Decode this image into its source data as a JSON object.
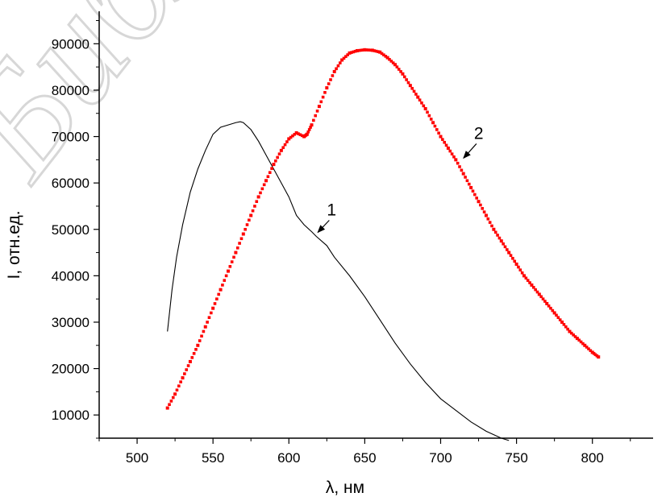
{
  "watermark": {
    "text": "Библио"
  },
  "chart_data": {
    "type": "line",
    "xlabel": "λ, нм",
    "ylabel": "I, отн.ед.",
    "xlim": [
      475,
      840
    ],
    "ylim": [
      5000,
      97000
    ],
    "x_ticks": [
      500,
      550,
      600,
      650,
      700,
      750,
      800
    ],
    "y_ticks": [
      10000,
      20000,
      30000,
      40000,
      50000,
      60000,
      70000,
      80000,
      90000
    ],
    "grid": false,
    "series": [
      {
        "name": "1",
        "style": "line",
        "color": "#000000",
        "x": [
          520,
          523,
          526,
          530,
          535,
          540,
          545,
          550,
          555,
          560,
          565,
          568,
          570,
          575,
          580,
          585,
          590,
          595,
          600,
          605,
          610,
          615,
          618,
          625,
          630,
          640,
          650,
          660,
          670,
          680,
          690,
          700,
          710,
          720,
          730,
          740,
          745
        ],
        "y": [
          28000,
          37000,
          44000,
          51000,
          58000,
          63000,
          67000,
          70500,
          72000,
          72500,
          73000,
          73200,
          73000,
          71500,
          69000,
          66000,
          63000,
          60000,
          57000,
          53000,
          51000,
          49500,
          48500,
          46500,
          44000,
          40000,
          35500,
          30500,
          25500,
          21000,
          17000,
          13500,
          11000,
          8500,
          6500,
          5000,
          4500
        ]
      },
      {
        "name": "2",
        "style": "points",
        "color": "#ff0000",
        "x": [
          520,
          525,
          530,
          535,
          540,
          545,
          550,
          555,
          560,
          565,
          570,
          575,
          580,
          585,
          590,
          595,
          600,
          605,
          610,
          612,
          615,
          620,
          625,
          630,
          635,
          640,
          645,
          650,
          655,
          660,
          665,
          670,
          675,
          680,
          685,
          690,
          695,
          700,
          705,
          710,
          715,
          720,
          725,
          730,
          735,
          740,
          745,
          750,
          755,
          760,
          765,
          770,
          775,
          780,
          785,
          790,
          795,
          800,
          804
        ],
        "y": [
          11500,
          14500,
          18000,
          21500,
          25000,
          29000,
          33000,
          37000,
          41000,
          45000,
          49000,
          53000,
          57000,
          60500,
          64000,
          67000,
          69500,
          70800,
          70000,
          70500,
          72500,
          76500,
          80500,
          84000,
          86500,
          88000,
          88500,
          88700,
          88600,
          88200,
          87000,
          85500,
          83500,
          81000,
          78500,
          76000,
          73000,
          70000,
          67500,
          65000,
          62000,
          59000,
          56000,
          53000,
          50000,
          47500,
          45000,
          42500,
          40000,
          38000,
          36000,
          34000,
          32000,
          30000,
          28000,
          26500,
          25000,
          23500,
          22500
        ]
      }
    ],
    "annotations": [
      {
        "text": "1",
        "x": 625,
        "y": 53000,
        "arrow_to": [
          618,
          49000
        ]
      },
      {
        "text": "2",
        "x": 722,
        "y": 69500,
        "arrow_to": [
          714,
          65000
        ]
      }
    ]
  }
}
